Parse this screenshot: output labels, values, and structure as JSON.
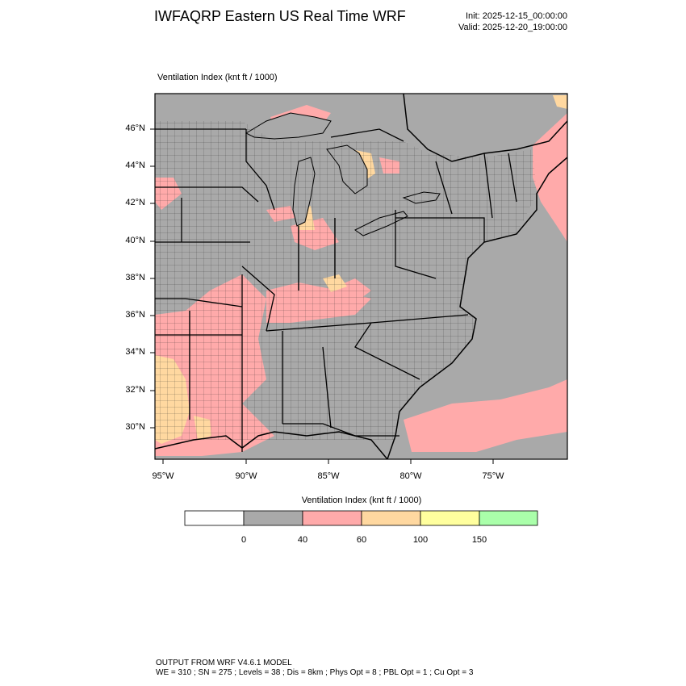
{
  "header": {
    "title": "IWFAQRP Eastern US Real Time WRF",
    "init": "Init: 2025-12-15_00:00:00",
    "valid": "Valid: 2025-12-20_19:00:00"
  },
  "plot": {
    "field_label": "Ventilation Index   (knt ft / 1000)",
    "lat_ticks": [
      "46°N",
      "44°N",
      "42°N",
      "40°N",
      "38°N",
      "36°N",
      "34°N",
      "32°N",
      "30°N"
    ],
    "lon_ticks": [
      "95°W",
      "90°W",
      "85°W",
      "80°W",
      "75°W"
    ]
  },
  "colors": {
    "ocean": "#a9a9a9",
    "land_low": "#a9a9a9",
    "pink": "#ffaaaa",
    "orange": "#ffd8a0",
    "yellow": "#ffff9e",
    "green": "#aaffaa",
    "border": "#000000"
  },
  "legend": {
    "label": "Ventilation Index  (knt ft / 1000)",
    "bins": [
      {
        "color": "#ffffff"
      },
      {
        "color": "#a9a9a9"
      },
      {
        "color": "#ffaaaa"
      },
      {
        "color": "#ffd8a0"
      },
      {
        "color": "#ffff9e"
      },
      {
        "color": "#aaffaa"
      }
    ],
    "values": [
      "0",
      "40",
      "60",
      "100",
      "150"
    ]
  },
  "footer": {
    "line1": "OUTPUT FROM WRF V4.6.1 MODEL",
    "line2": "WE = 310 ; SN = 275 ; Levels = 38 ; Dis = 8km ; Phys Opt = 8 ; PBL Opt = 1 ; Cu Opt = 3"
  }
}
